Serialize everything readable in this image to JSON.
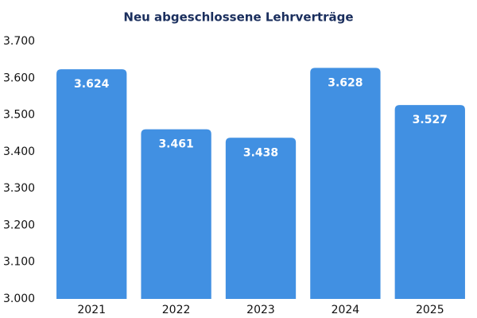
{
  "chart_data": {
    "type": "bar",
    "title": "Neu abgeschlossene Lehrverträge",
    "categories": [
      "2021",
      "2022",
      "2023",
      "2024",
      "2025"
    ],
    "values": [
      3624,
      3461,
      3438,
      3628,
      3527
    ],
    "value_labels": [
      "3.624",
      "3.461",
      "3.438",
      "3.628",
      "3.527"
    ],
    "color": "#4190e2",
    "ylim": [
      3000,
      3700
    ],
    "yticks": [
      {
        "value": 3000,
        "label": "3.000"
      },
      {
        "value": 3100,
        "label": "3.100"
      },
      {
        "value": 3200,
        "label": "3.200"
      },
      {
        "value": 3300,
        "label": "3.300"
      },
      {
        "value": 3400,
        "label": "3.400"
      },
      {
        "value": 3500,
        "label": "3.500"
      },
      {
        "value": 3600,
        "label": "3.600"
      },
      {
        "value": 3700,
        "label": "3.700"
      }
    ],
    "grid": false
  }
}
